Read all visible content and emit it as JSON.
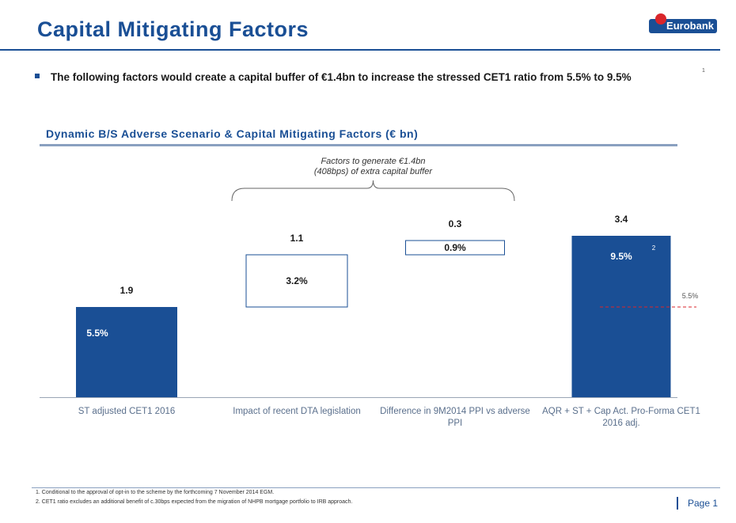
{
  "header": {
    "title": "Capital Mitigating Factors",
    "logo_text": "Eurobank"
  },
  "bullet": {
    "text": "The following factors would create a capital buffer of €1.4bn to increase the stressed CET1 ratio from 5.5% to 9.5%",
    "footnote_ref": "1"
  },
  "section": {
    "title": "Dynamic B/S Adverse Scenario & Capital Mitigating Factors (€ bn)"
  },
  "chart_data": {
    "type": "bar",
    "subtype": "waterfall",
    "categories": [
      "ST adjusted CET1 2016",
      "Impact of recent DTA legislation",
      "Difference in 9M2014 PPI vs adverse PPI",
      "AQR + ST + Cap Act. Pro-Forma CET1 2016 adj."
    ],
    "values": [
      1.9,
      1.1,
      0.3,
      3.4
    ],
    "value_labels": [
      "1.9",
      "1.1",
      "0.3",
      "3.4"
    ],
    "ratio_labels": [
      "5.5%",
      "3.2%",
      "0.9%",
      "9.5%"
    ],
    "bar_styles": [
      "filled",
      "outline",
      "outline",
      "filled"
    ],
    "bracket_annotation": [
      "Factors to generate €1.4bn",
      "(408bps) of extra capital buffer"
    ],
    "reference_line": {
      "value": 1.9,
      "label": "5.5%"
    },
    "final_bar_footnote": "2",
    "colors": {
      "filled": "#1a4f95",
      "outline": "#1a4f95",
      "reference": "#d9262b"
    }
  },
  "footnotes": [
    "1.   Conditional to the approval of opt-in to the scheme by the forthcoming 7 November 2014 EGM.",
    "2.   CET1 ratio excludes an additional benefit of c.30bps expected from the migration of NHPB mortgage portfolio to IRB approach."
  ],
  "footer": {
    "page_label": "Page 1"
  }
}
